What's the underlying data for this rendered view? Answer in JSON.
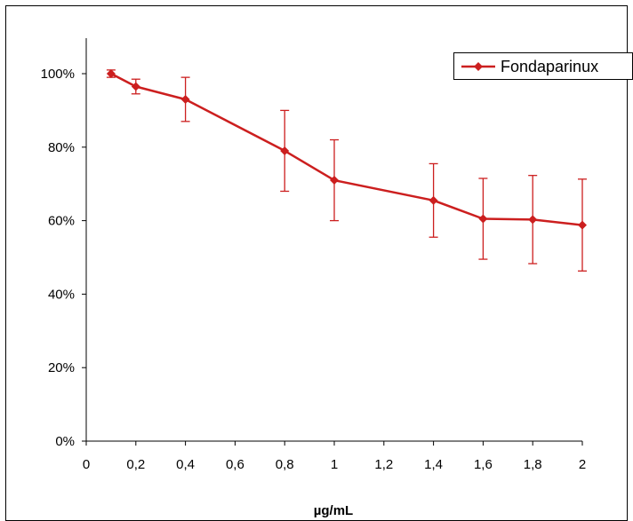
{
  "chart_data": {
    "type": "line",
    "title": "",
    "xlabel": "µg/mL",
    "ylabel": "",
    "xlim": [
      0,
      2
    ],
    "ylim": [
      0,
      1.1
    ],
    "x_ticks": [
      0,
      0.2,
      0.4,
      0.6,
      0.8,
      1,
      1.2,
      1.4,
      1.6,
      1.8,
      2
    ],
    "x_tick_labels": [
      "0",
      "0,2",
      "0,4",
      "0,6",
      "0,8",
      "1",
      "1,2",
      "1,4",
      "1,6",
      "1,8",
      "2"
    ],
    "y_ticks": [
      0,
      0.2,
      0.4,
      0.6,
      0.8,
      1.0
    ],
    "y_tick_labels": [
      "0%",
      "20%",
      "40%",
      "60%",
      "80%",
      "100%"
    ],
    "grid": false,
    "legend_position": "top-right",
    "series_color": "#cc1f1f",
    "series": [
      {
        "name": "Fondaparinux",
        "x": [
          0.1,
          0.2,
          0.4,
          0.8,
          1.0,
          1.4,
          1.6,
          1.8,
          2.0
        ],
        "y": [
          1.0,
          0.965,
          0.93,
          0.79,
          0.71,
          0.655,
          0.605,
          0.603,
          0.588
        ],
        "error": [
          0.01,
          0.02,
          0.06,
          0.11,
          0.11,
          0.1,
          0.11,
          0.12,
          0.125
        ]
      }
    ]
  }
}
